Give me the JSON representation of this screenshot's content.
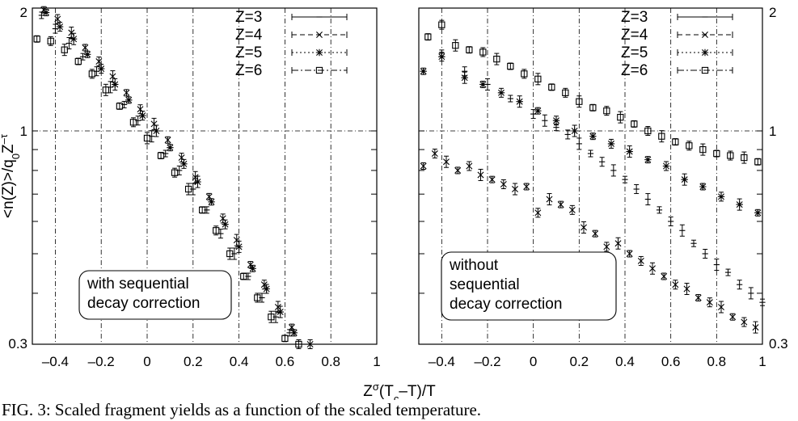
{
  "chart_data": {
    "type": "scatter",
    "yscale": "log",
    "ylim": [
      0.3,
      2
    ],
    "y_ticks": [
      "2",
      "1",
      "0.3"
    ],
    "xlim": [
      -0.5,
      1
    ],
    "grid_lines_x": [
      -0.4,
      -0.2,
      0,
      0.2,
      0.4,
      0.6,
      0.8
    ],
    "grid_line_y": 1,
    "xlabel_parts": {
      "z": "Z",
      "sigma": "σ",
      "t1": "(T",
      "c": "c",
      "t2": "–T)/T"
    },
    "ylabel_parts": {
      "a": "<n(Z)>/q",
      "sub": "0",
      "b": "Z",
      "sup": "–τ"
    },
    "legend": [
      "Z=3",
      "Z=4",
      "Z=5",
      "Z=6"
    ],
    "panels": [
      {
        "name": "left",
        "x_ticks": [
          "–0.4",
          "–0.2",
          "0",
          "0.2",
          "0.4",
          "0.6",
          "0.8",
          "1"
        ],
        "annotation": [
          "with sequential",
          "decay correction"
        ],
        "series": [
          {
            "name": "Z=3",
            "x": [
              -0.46,
              -0.4,
              -0.34,
              -0.28,
              -0.22,
              -0.16,
              -0.1,
              -0.04,
              0.02,
              0.08,
              0.14,
              0.2,
              0.26,
              0.32,
              0.38,
              0.44,
              0.5,
              0.56,
              0.62
            ],
            "y": [
              1.92,
              1.78,
              1.64,
              1.52,
              1.4,
              1.28,
              1.16,
              1.06,
              0.97,
              0.88,
              0.8,
              0.72,
              0.64,
              0.56,
              0.5,
              0.44,
              0.39,
              0.35,
              0.32
            ]
          },
          {
            "name": "Z=4",
            "x": [
              -0.45,
              -0.39,
              -0.33,
              -0.27,
              -0.21,
              -0.15,
              -0.09,
              -0.03,
              0.03,
              0.09,
              0.15,
              0.21,
              0.27,
              0.33,
              0.39,
              0.45,
              0.51,
              0.57,
              0.63,
              0.71
            ],
            "y": [
              1.98,
              1.88,
              1.74,
              1.6,
              1.48,
              1.36,
              1.24,
              1.13,
              1.04,
              0.95,
              0.86,
              0.77,
              0.69,
              0.61,
              0.54,
              0.47,
              0.42,
              0.37,
              0.33,
              0.3
            ]
          },
          {
            "name": "Z=5",
            "x": [
              -0.44,
              -0.38,
              -0.32,
              -0.26,
              -0.2,
              -0.14,
              -0.08,
              -0.02,
              0.04,
              0.1,
              0.16,
              0.22,
              0.28,
              0.34,
              0.4,
              0.46,
              0.52,
              0.58,
              0.64
            ],
            "y": [
              1.95,
              1.8,
              1.68,
              1.54,
              1.42,
              1.3,
              1.19,
              1.09,
              1.0,
              0.91,
              0.83,
              0.75,
              0.67,
              0.59,
              0.52,
              0.46,
              0.41,
              0.36,
              0.32
            ]
          },
          {
            "name": "Z=6",
            "x": [
              -0.48,
              -0.42,
              -0.36,
              -0.3,
              -0.24,
              -0.18,
              -0.12,
              -0.06,
              0.0,
              0.06,
              0.12,
              0.18,
              0.24,
              0.3,
              0.36,
              0.42,
              0.48,
              0.54,
              0.6,
              0.66
            ],
            "y": [
              1.68,
              1.66,
              1.58,
              1.48,
              1.38,
              1.26,
              1.15,
              1.05,
              0.96,
              0.87,
              0.79,
              0.72,
              0.64,
              0.57,
              0.5,
              0.44,
              0.39,
              0.35,
              0.31,
              0.3
            ]
          }
        ]
      },
      {
        "name": "right",
        "x_ticks": [
          "–0.4",
          "–0.2",
          "0",
          "0.2",
          "0.4",
          "0.6",
          "0.8",
          "1"
        ],
        "right_ticks": [
          "2",
          "1",
          "0.3"
        ],
        "annotation": [
          "without",
          "sequential",
          "decay correction"
        ],
        "series": [
          {
            "name": "Z=3",
            "x": [
              -0.4,
              -0.3,
              -0.2,
              -0.1,
              0.0,
              0.05,
              0.1,
              0.15,
              0.2,
              0.25,
              0.3,
              0.35,
              0.4,
              0.45,
              0.5,
              0.55,
              0.6,
              0.65,
              0.7,
              0.75,
              0.8,
              0.85,
              0.9,
              0.95,
              1.0
            ],
            "y": [
              1.55,
              1.4,
              1.3,
              1.2,
              1.1,
              1.06,
              1.02,
              0.98,
              0.93,
              0.88,
              0.84,
              0.8,
              0.76,
              0.72,
              0.68,
              0.64,
              0.6,
              0.57,
              0.53,
              0.5,
              0.47,
              0.45,
              0.42,
              0.4,
              0.38
            ]
          },
          {
            "name": "Z=4",
            "x": [
              -0.48,
              -0.43,
              -0.38,
              -0.33,
              -0.28,
              -0.23,
              -0.18,
              -0.13,
              -0.08,
              -0.03,
              0.02,
              0.07,
              0.12,
              0.17,
              0.22,
              0.27,
              0.32,
              0.37,
              0.42,
              0.47,
              0.52,
              0.57,
              0.62,
              0.67,
              0.72,
              0.77,
              0.82,
              0.87,
              0.92,
              0.97
            ],
            "y": [
              0.82,
              0.88,
              0.84,
              0.8,
              0.82,
              0.78,
              0.76,
              0.74,
              0.72,
              0.73,
              0.63,
              0.68,
              0.66,
              0.64,
              0.58,
              0.56,
              0.52,
              0.53,
              0.5,
              0.48,
              0.46,
              0.44,
              0.42,
              0.41,
              0.39,
              0.38,
              0.37,
              0.35,
              0.34,
              0.33
            ]
          },
          {
            "name": "Z=5",
            "x": [
              -0.48,
              -0.4,
              -0.3,
              -0.22,
              -0.14,
              -0.06,
              0.02,
              0.1,
              0.18,
              0.26,
              0.34,
              0.42,
              0.5,
              0.58,
              0.66,
              0.74,
              0.82,
              0.9,
              0.98
            ],
            "y": [
              1.4,
              1.52,
              1.35,
              1.3,
              1.24,
              1.18,
              1.12,
              1.06,
              1.0,
              0.97,
              0.93,
              0.89,
              0.85,
              0.82,
              0.76,
              0.73,
              0.69,
              0.66,
              0.63
            ]
          },
          {
            "name": "Z=6",
            "x": [
              -0.46,
              -0.4,
              -0.34,
              -0.28,
              -0.22,
              -0.16,
              -0.1,
              -0.04,
              0.02,
              0.08,
              0.14,
              0.2,
              0.26,
              0.32,
              0.38,
              0.44,
              0.5,
              0.56,
              0.62,
              0.68,
              0.74,
              0.8,
              0.86,
              0.92,
              0.98
            ],
            "y": [
              1.7,
              1.82,
              1.62,
              1.58,
              1.56,
              1.5,
              1.44,
              1.38,
              1.34,
              1.28,
              1.24,
              1.18,
              1.14,
              1.12,
              1.08,
              1.04,
              1.0,
              0.97,
              0.94,
              0.92,
              0.9,
              0.88,
              0.87,
              0.86,
              0.84
            ]
          }
        ]
      }
    ]
  },
  "caption": "FIG. 3: Scaled fragment yields as a function of the scaled temperature."
}
